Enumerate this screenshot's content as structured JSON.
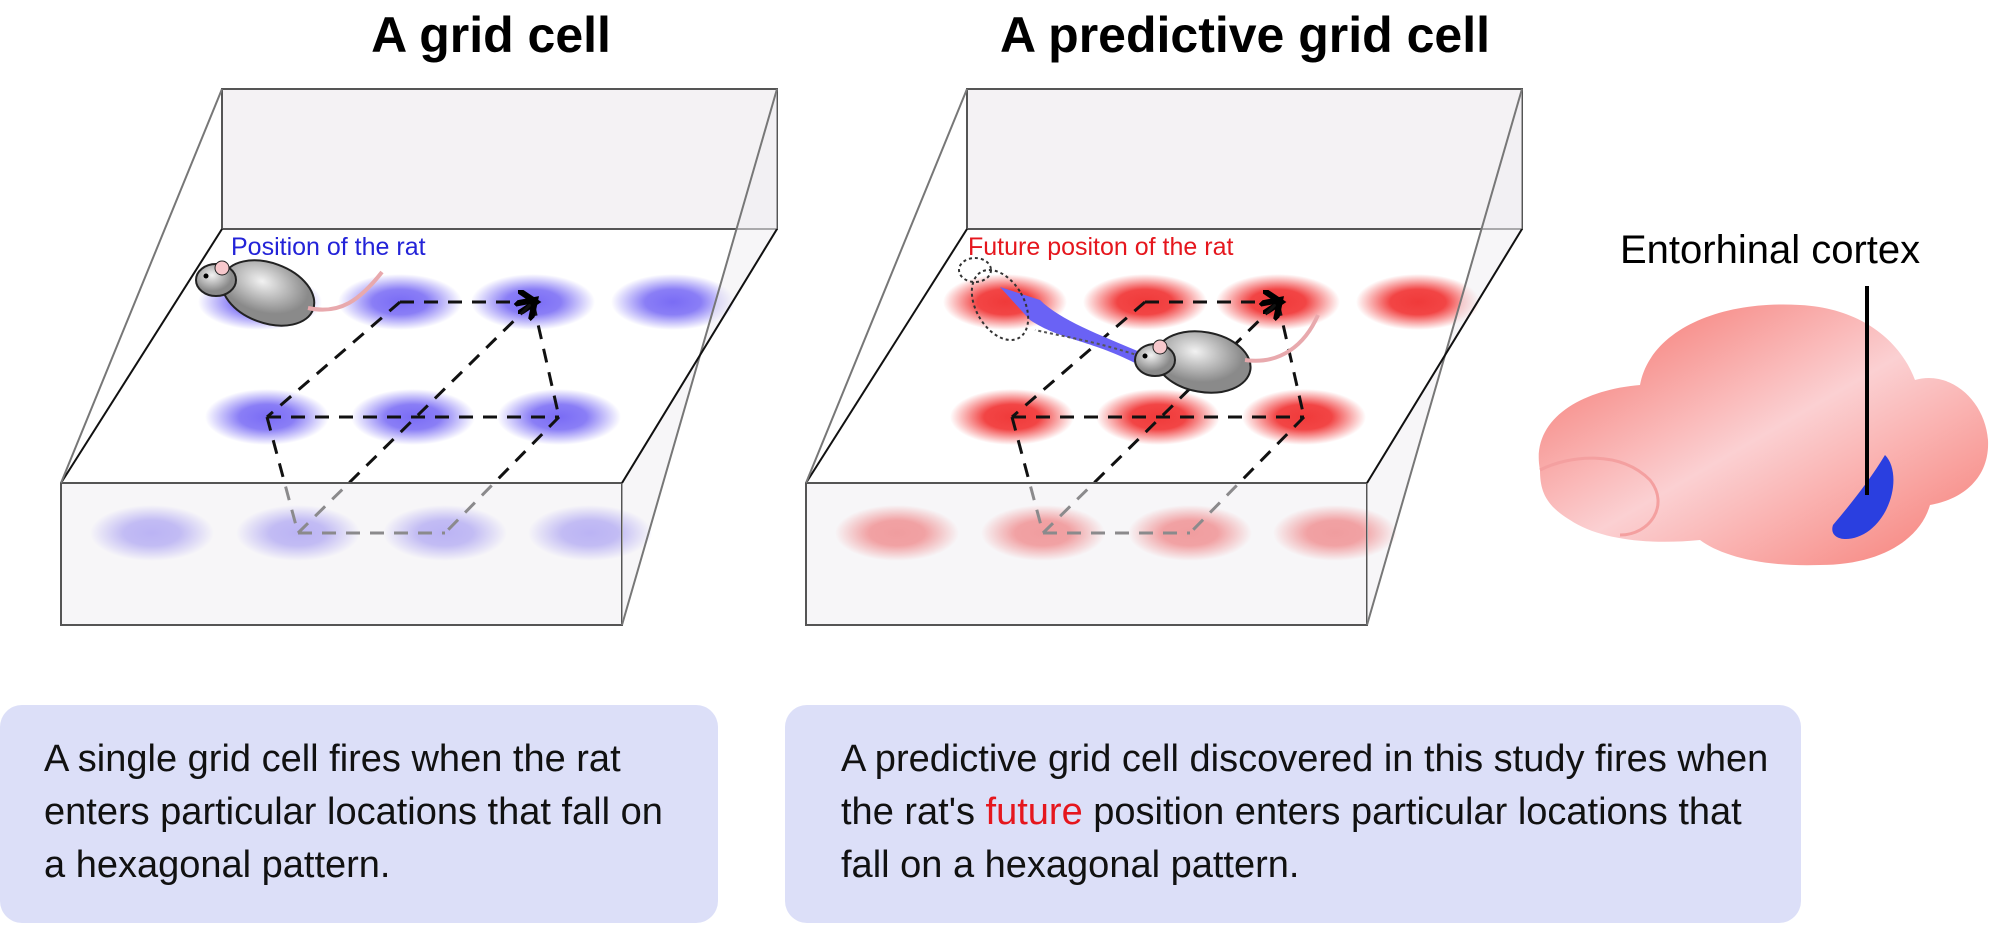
{
  "titles": {
    "left": "A grid cell",
    "right": "A predictive grid cell"
  },
  "labels": {
    "left_rat": "Position of the rat",
    "right_rat": "Future positon of the rat",
    "brain": "Entorhinal cortex"
  },
  "captions": {
    "left": "A single grid cell fires when the rat enters particular locations that fall on a hexagonal pattern.",
    "right_before": "A predictive grid cell discovered in this study fires when the rat's ",
    "right_highlight": "future",
    "right_after": " position enters particular locations that fall on a hexagonal pattern."
  },
  "colors": {
    "left_field": "#7a6cf5",
    "right_field": "#f03a3a",
    "caption_bg": "#dcdff8",
    "highlight": "#e5161d",
    "entorhinal": "#2a3fe0",
    "brain": "#f77a72"
  }
}
